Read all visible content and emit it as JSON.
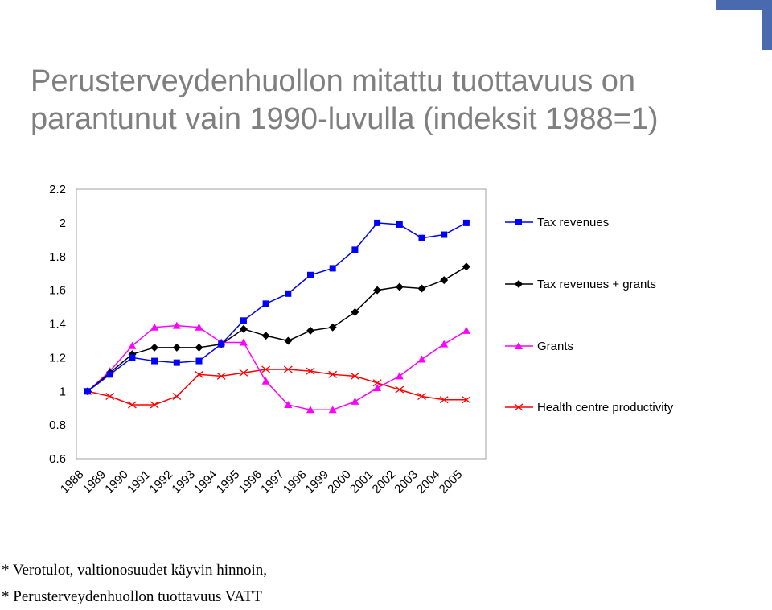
{
  "slide": {
    "title_line1": "Perusterveydenhuollon mitattu tuottavuus on",
    "title_line2": "parantunut vain 1990-luvulla (indeksit 1988=1)"
  },
  "footnotes": [
    "* Verotulot, valtionosuudet käyvin hinnoin,",
    "* Perusterveydenhuollon tuottavuus VATT"
  ],
  "colors": {
    "title": "#7f7f7f",
    "accent_deco": "#4a6ab0",
    "tax_revenues": "#0000ff",
    "tax_revenues_grants": "#000000",
    "grants": "#ff00ff",
    "health_centre_productivity": "#ff0000"
  },
  "chart_data": {
    "type": "line",
    "title": "",
    "xlabel": "",
    "ylabel": "",
    "x": [
      "1988",
      "1989",
      "1990",
      "1991",
      "1992",
      "1993",
      "1994",
      "1995",
      "1996",
      "1997",
      "1998",
      "1999",
      "2000",
      "2001",
      "2002",
      "2003",
      "2004",
      "2005"
    ],
    "ylim": [
      0.6,
      2.2
    ],
    "yticks": [
      "2.2",
      "2",
      "1.8",
      "1.6",
      "1.4",
      "1.2",
      "1",
      "0.8",
      "0.6"
    ],
    "grid": false,
    "legend_position": "right",
    "series": [
      {
        "name": "Tax revenues",
        "color": "#0000ff",
        "marker": "square",
        "values": [
          1.0,
          1.1,
          1.2,
          1.18,
          1.17,
          1.18,
          1.28,
          1.42,
          1.52,
          1.58,
          1.69,
          1.73,
          1.84,
          2.0,
          1.99,
          1.91,
          1.93,
          2.0
        ]
      },
      {
        "name": "Tax revenues + grants",
        "color": "#000000",
        "marker": "diamond",
        "values": [
          1.0,
          1.11,
          1.22,
          1.26,
          1.26,
          1.26,
          1.28,
          1.37,
          1.33,
          1.3,
          1.36,
          1.38,
          1.47,
          1.6,
          1.62,
          1.61,
          1.66,
          1.74
        ]
      },
      {
        "name": "Grants",
        "color": "#ff00ff",
        "marker": "triangle",
        "values": [
          1.0,
          1.12,
          1.27,
          1.38,
          1.39,
          1.38,
          1.29,
          1.29,
          1.06,
          0.92,
          0.89,
          0.89,
          0.94,
          1.02,
          1.09,
          1.19,
          1.28,
          1.36
        ]
      },
      {
        "name": "Health centre productivity",
        "color": "#ff0000",
        "marker": "x",
        "values": [
          1.0,
          0.97,
          0.92,
          0.92,
          0.97,
          1.1,
          1.09,
          1.11,
          1.13,
          1.13,
          1.12,
          1.1,
          1.09,
          1.05,
          1.01,
          0.97,
          0.95,
          0.95
        ]
      }
    ]
  }
}
